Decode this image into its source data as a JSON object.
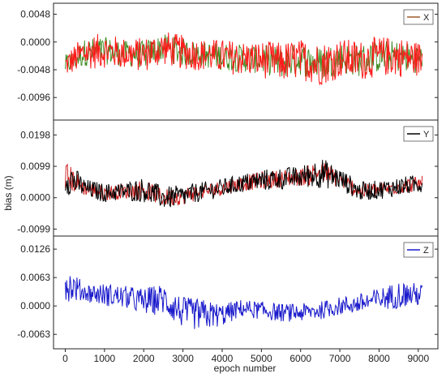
{
  "chart_data": {
    "type": "line",
    "xlabel": "epoch number",
    "ylabel": "bias (m)",
    "xlim": [
      -300,
      9500
    ],
    "xticks": [
      0,
      1000,
      2000,
      3000,
      4000,
      5000,
      6000,
      7000,
      8000,
      9000
    ],
    "xtick_labels": [
      "0",
      "1000",
      "2000",
      "3000",
      "4000",
      "5000",
      "6000",
      "7000",
      "8000",
      "9000"
    ],
    "panels": [
      {
        "series_name": "X",
        "legend": "top-right",
        "ylim": [
          -0.0135,
          0.0067
        ],
        "yticks": [
          0.0048,
          0.0,
          -0.0048,
          -0.0096
        ],
        "ytick_labels": [
          "0.0048",
          "0.0000",
          "-0.0048",
          "-0.0096"
        ],
        "colors": {
          "primary": "#ff1a1a",
          "secondary": "#3a8a1e",
          "legend_line": "#a05a2c"
        },
        "x": [
          0,
          500,
          1000,
          1500,
          2000,
          2500,
          3000,
          3500,
          4000,
          4500,
          5000,
          5500,
          6000,
          6500,
          7000,
          7500,
          8000,
          8500,
          9100
        ],
        "values": [
          -0.004,
          -0.0018,
          -0.0015,
          -0.002,
          -0.0022,
          -0.001,
          -0.0018,
          -0.0022,
          -0.0025,
          -0.0028,
          -0.003,
          -0.0035,
          -0.003,
          -0.0038,
          -0.0028,
          -0.0032,
          -0.0025,
          -0.0025,
          -0.003
        ],
        "band": [
          0.0022,
          0.003,
          0.003,
          0.0028,
          0.003,
          0.003,
          0.003,
          0.0028,
          0.003,
          0.003,
          0.0032,
          0.0035,
          0.0035,
          0.0038,
          0.0035,
          0.0035,
          0.0035,
          0.0035,
          0.003
        ]
      },
      {
        "series_name": "Y",
        "legend": "top-right",
        "ylim": [
          -0.0121,
          0.0245
        ],
        "yticks": [
          0.0198,
          0.0099,
          0.0,
          -0.0099
        ],
        "ytick_labels": [
          "0.0198",
          "0.0099",
          "0.0000",
          "-0.0099"
        ],
        "colors": {
          "primary": "#000000",
          "secondary": "#cc1010",
          "legend_line": "#000000"
        },
        "x": [
          0,
          500,
          1000,
          1500,
          2000,
          2500,
          3000,
          3500,
          4000,
          4500,
          5000,
          5500,
          6000,
          6500,
          7000,
          7500,
          8000,
          8500,
          9100
        ],
        "values": [
          0.007,
          0.003,
          0.0015,
          0.002,
          0.0025,
          0.0,
          0.0005,
          0.002,
          0.003,
          0.0045,
          0.0055,
          0.006,
          0.0065,
          0.008,
          0.006,
          0.002,
          0.0025,
          0.0035,
          0.0045
        ],
        "band": [
          0.006,
          0.003,
          0.003,
          0.003,
          0.004,
          0.0035,
          0.0035,
          0.003,
          0.003,
          0.003,
          0.0035,
          0.0035,
          0.0035,
          0.005,
          0.0035,
          0.003,
          0.003,
          0.003,
          0.003
        ]
      },
      {
        "series_name": "Z",
        "legend": "top-right",
        "ylim": [
          -0.0095,
          0.0155
        ],
        "yticks": [
          0.0126,
          0.0063,
          0.0,
          -0.0063
        ],
        "ytick_labels": [
          "0.0126",
          "0.0063",
          "0.0000",
          "-0.0063"
        ],
        "colors": {
          "primary": "#1a1acc",
          "secondary": "#1a1acc",
          "legend_line": "#1a1acc"
        },
        "x": [
          0,
          500,
          1000,
          1500,
          2000,
          2500,
          3000,
          3500,
          4000,
          4500,
          5000,
          5500,
          6000,
          6500,
          7000,
          7500,
          8000,
          8500,
          9100
        ],
        "values": [
          0.005,
          0.003,
          0.0025,
          0.002,
          0.001,
          0.0015,
          -0.0015,
          -0.002,
          -0.002,
          -0.0005,
          -0.001,
          -0.0015,
          -0.0015,
          -0.001,
          0.0,
          0.0005,
          0.0015,
          0.0025,
          0.0025
        ],
        "band": [
          0.004,
          0.002,
          0.0025,
          0.0025,
          0.003,
          0.0035,
          0.0035,
          0.0035,
          0.0025,
          0.002,
          0.002,
          0.002,
          0.002,
          0.002,
          0.002,
          0.0022,
          0.0025,
          0.003,
          0.0025
        ]
      }
    ]
  }
}
